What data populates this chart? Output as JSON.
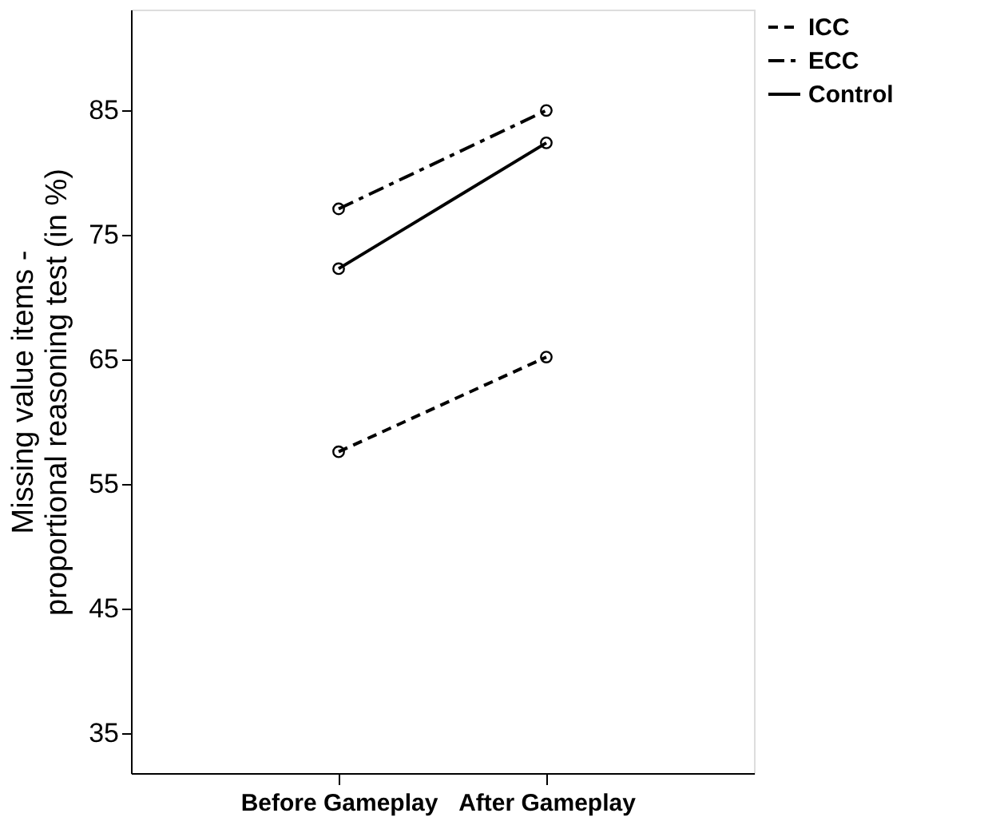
{
  "chart_data": {
    "type": "line",
    "ylabel": "Missing value items -\nproportional reasoning test (in %)",
    "categories": [
      "Before Gameplay",
      "After Gameplay"
    ],
    "series": [
      {
        "name": "ICC",
        "color": "#000000",
        "line_style": "dashed",
        "values": [
          57.6,
          65.2
        ]
      },
      {
        "name": "ECC",
        "color": "#000000",
        "line_style": "dashdot",
        "values": [
          77.1,
          85.0
        ]
      },
      {
        "name": "Control",
        "color": "#000000",
        "line_style": "solid",
        "values": [
          72.3,
          82.4
        ]
      }
    ],
    "ylim": [
      31.8,
      93.1
    ],
    "yticks": [
      35,
      45,
      55,
      65,
      75,
      85
    ],
    "marker": "circle",
    "grid": false,
    "legend": "top right"
  }
}
